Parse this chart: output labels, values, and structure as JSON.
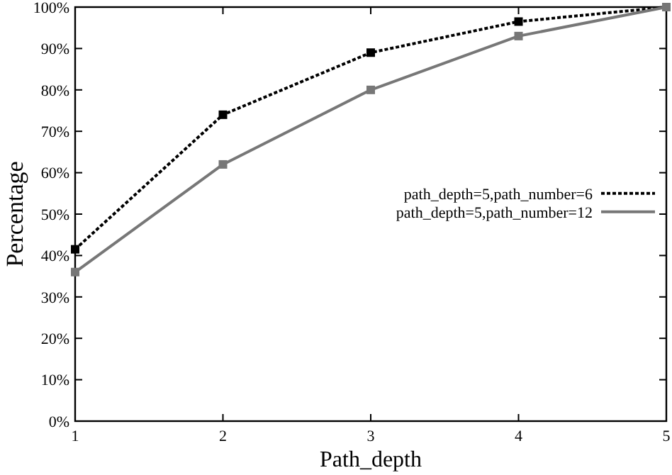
{
  "chart_data": {
    "type": "line",
    "xlabel": "Path_depth",
    "ylabel": "Percentage",
    "x": [
      1,
      2,
      3,
      4,
      5
    ],
    "xlim": [
      1,
      5
    ],
    "xticks": [
      1,
      2,
      3,
      4,
      5
    ],
    "ylim": [
      0,
      100
    ],
    "yticks": [
      {
        "value": 0,
        "label": "0%"
      },
      {
        "value": 10,
        "label": "10%"
      },
      {
        "value": 20,
        "label": "20%"
      },
      {
        "value": 30,
        "label": "30%"
      },
      {
        "value": 40,
        "label": "40%"
      },
      {
        "value": 50,
        "label": "50%"
      },
      {
        "value": 60,
        "label": "60%"
      },
      {
        "value": 70,
        "label": "70%"
      },
      {
        "value": 80,
        "label": "80%"
      },
      {
        "value": 90,
        "label": "90%"
      },
      {
        "value": 100,
        "label": "100%"
      }
    ],
    "series": [
      {
        "name": "path_depth=5,path_number=6",
        "color": "#000000",
        "line_style": "dotted",
        "values": [
          41.5,
          74,
          89,
          96.5,
          100
        ]
      },
      {
        "name": "path_depth=5,path_number=12",
        "color": "#777777",
        "line_style": "solid",
        "values": [
          36,
          62,
          80,
          93,
          100
        ]
      }
    ],
    "marker": "square",
    "grid": false,
    "legend": "right"
  }
}
